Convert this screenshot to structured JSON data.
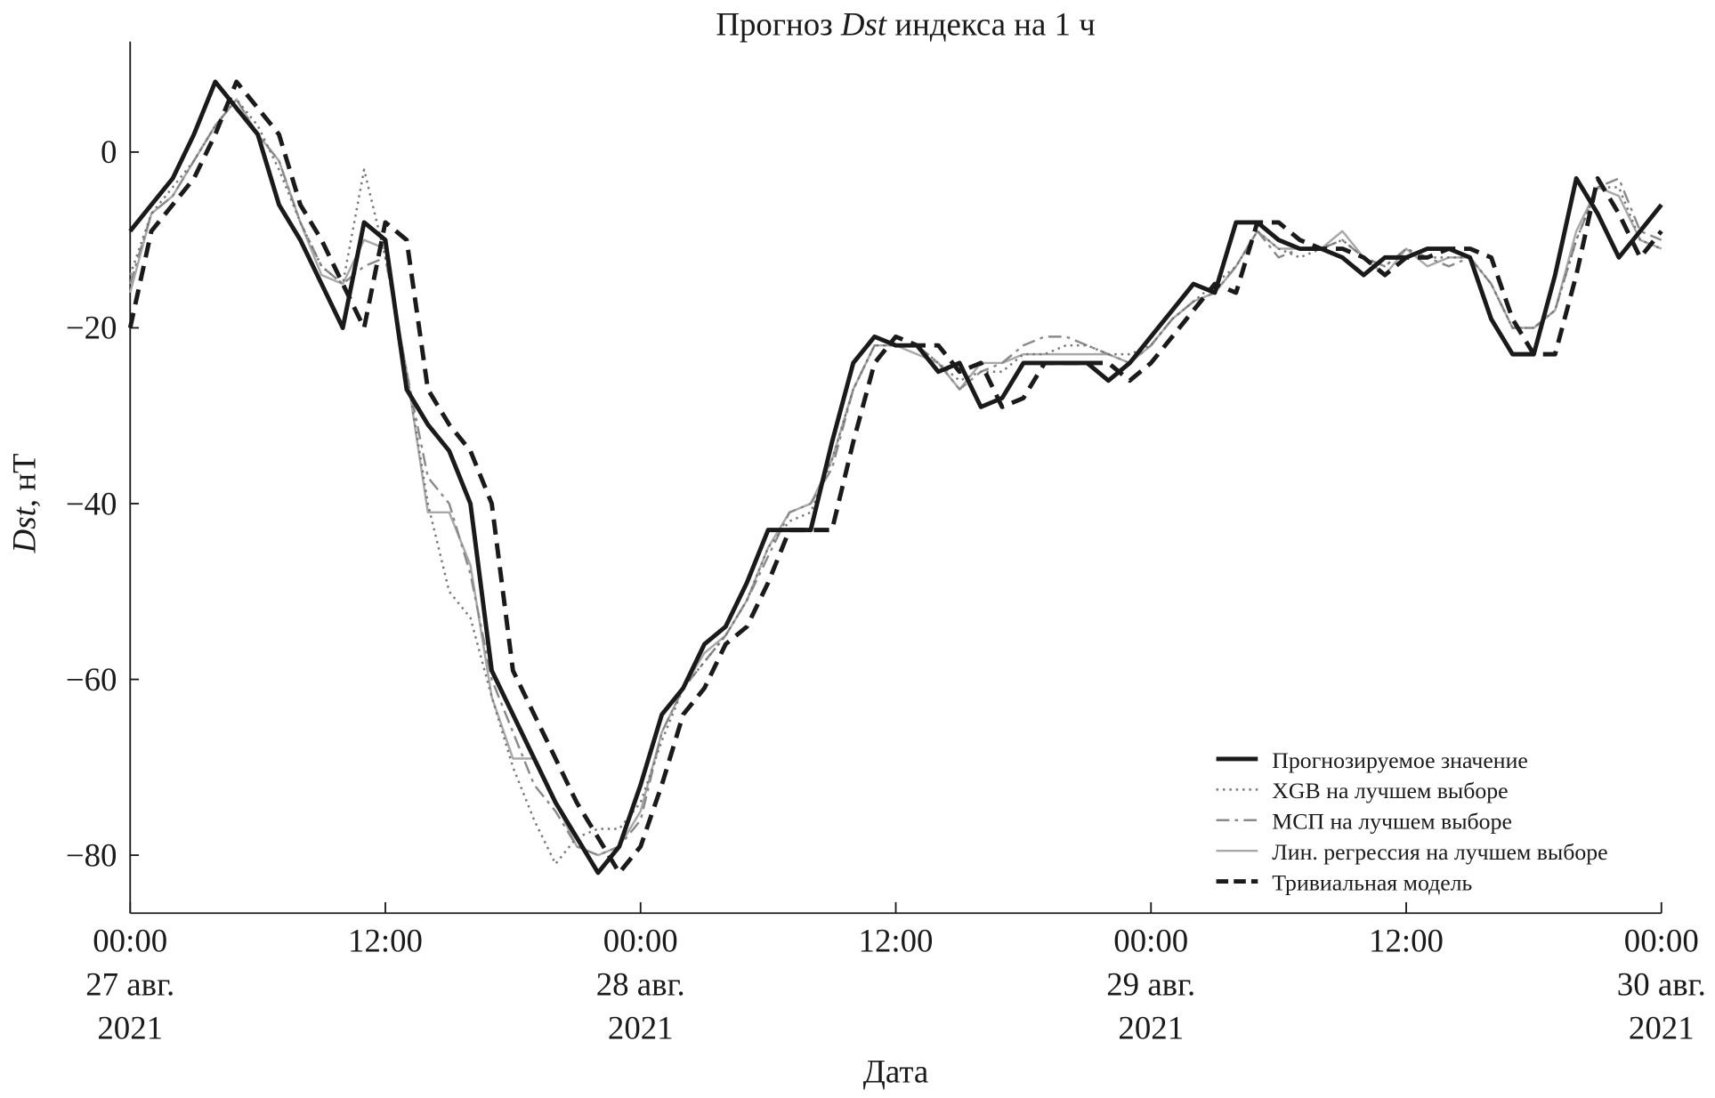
{
  "chart_data": {
    "type": "line",
    "title": {
      "prefix": "Прогноз ",
      "italic": "Dst",
      "suffix": " индекса на 1 ч"
    },
    "xlabel": "Дата",
    "ylabel": {
      "italic": "Dst",
      "suffix": ", нТ"
    },
    "ylim": [
      -87,
      12.5
    ],
    "xlim": [
      "2021-08-27T00:00",
      "2021-08-30T00:00"
    ],
    "grid": false,
    "legend_position": "bottom-right",
    "yticks": [
      0,
      -20,
      -40,
      -60,
      -80
    ],
    "ytick_labels": [
      "0",
      "−20",
      "−40",
      "−60",
      "−80"
    ],
    "xticks": [
      {
        "hour": 0,
        "lines": [
          "00:00",
          "27 авг.",
          "2021"
        ]
      },
      {
        "hour": 12,
        "lines": [
          "12:00"
        ]
      },
      {
        "hour": 24,
        "lines": [
          "00:00",
          "28 авг.",
          "2021"
        ]
      },
      {
        "hour": 36,
        "lines": [
          "12:00"
        ]
      },
      {
        "hour": 48,
        "lines": [
          "00:00",
          "29 авг.",
          "2021"
        ]
      },
      {
        "hour": 60,
        "lines": [
          "12:00"
        ]
      },
      {
        "hour": 72,
        "lines": [
          "00:00",
          "30 авг.",
          "2021"
        ]
      }
    ],
    "x_start": "2021-08-27T00:00",
    "x_step": "1 ч",
    "series": [
      {
        "name": "Прогнозируемое значение",
        "style": "solid-bold",
        "color": "#1a1a1a",
        "values": [
          -9,
          -6,
          -3,
          2,
          8,
          5,
          2,
          -6,
          -10,
          -15,
          -20,
          -8,
          -10,
          -27,
          -31,
          -34,
          -40,
          -59,
          -64,
          -69,
          -74,
          -78,
          -82,
          -79,
          -72,
          -64,
          -61,
          -56,
          -54,
          -49,
          -43,
          -43,
          -43,
          -33,
          -24,
          -21,
          -22,
          -22,
          -25,
          -24,
          -29,
          -28,
          -24,
          -24,
          -24,
          -24,
          -26,
          -24,
          -21,
          -18,
          -15,
          -16,
          -8,
          -8,
          -10,
          -11,
          -11,
          -12,
          -14,
          -12,
          -12,
          -11,
          -11,
          -12,
          -19,
          -23,
          -23,
          -14,
          -3,
          -7,
          -12,
          -9,
          -6
        ]
      },
      {
        "name": "XGB на лучшем выборе",
        "style": "dotted",
        "color": "#777777",
        "values": [
          -14,
          -7,
          -4,
          -1,
          3,
          6,
          3,
          -2,
          -8,
          -13,
          -15,
          -2,
          -12,
          -25,
          -40,
          -50,
          -53,
          -62,
          -70,
          -76,
          -81,
          -78,
          -77,
          -77,
          -74,
          -67,
          -61,
          -58,
          -55,
          -51,
          -45,
          -42,
          -41,
          -35,
          -27,
          -22,
          -22,
          -22,
          -24,
          -26,
          -25,
          -25,
          -23,
          -23,
          -22,
          -22,
          -23,
          -23,
          -22,
          -19,
          -17,
          -15,
          -13,
          -9,
          -11,
          -12,
          -11,
          -10,
          -12,
          -13,
          -11,
          -12,
          -12,
          -12,
          -15,
          -20,
          -20,
          -18,
          -10,
          -4,
          -4,
          -10,
          -11
        ]
      },
      {
        "name": "МСП на лучшем выборе",
        "style": "dash-dot",
        "color": "#8a8a8a",
        "values": [
          -15,
          -7,
          -5,
          -1,
          3,
          6,
          2,
          -1,
          -8,
          -13,
          -15,
          -13,
          -12,
          -25,
          -37,
          -40,
          -48,
          -60,
          -66,
          -72,
          -75,
          -79,
          -80,
          -79,
          -76,
          -66,
          -61,
          -58,
          -55,
          -51,
          -46,
          -41,
          -40,
          -36,
          -27,
          -22,
          -22,
          -22,
          -24,
          -27,
          -25,
          -24,
          -22,
          -21,
          -21,
          -22,
          -23,
          -24,
          -22,
          -19,
          -17,
          -16,
          -13,
          -9,
          -12,
          -11,
          -11,
          -10,
          -12,
          -13,
          -11,
          -12,
          -13,
          -12,
          -15,
          -20,
          -20,
          -18,
          -10,
          -4,
          -3,
          -9,
          -10
        ]
      },
      {
        "name": "Лин. регрессия на лучшем выборе",
        "style": "solid-thin",
        "color": "#a8a8a8",
        "values": [
          -16,
          -7,
          -5,
          -1,
          3,
          6,
          2,
          -1,
          -8,
          -14,
          -15,
          -10,
          -11,
          -25,
          -41,
          -41,
          -47,
          -62,
          -69,
          -69,
          -74,
          -79,
          -80,
          -79,
          -75,
          -66,
          -61,
          -57,
          -55,
          -51,
          -45,
          -41,
          -40,
          -35,
          -27,
          -22,
          -22,
          -23,
          -24,
          -27,
          -24,
          -24,
          -23,
          -23,
          -23,
          -23,
          -23,
          -24,
          -22,
          -19,
          -17,
          -16,
          -13,
          -9,
          -11,
          -11,
          -11,
          -9,
          -12,
          -14,
          -11,
          -13,
          -12,
          -12,
          -15,
          -20,
          -20,
          -18,
          -9,
          -4,
          -5,
          -10,
          -11
        ]
      },
      {
        "name": "Тривиальная модель",
        "style": "dashed-bold",
        "color": "#1a1a1a",
        "values": [
          -20,
          -9,
          -6,
          -3,
          2,
          8,
          5,
          2,
          -6,
          -10,
          -15,
          -20,
          -8,
          -10,
          -27,
          -31,
          -34,
          -40,
          -59,
          -64,
          -69,
          -74,
          -78,
          -82,
          -79,
          -72,
          -64,
          -61,
          -56,
          -54,
          -49,
          -43,
          -43,
          -43,
          -33,
          -24,
          -21,
          -22,
          -22,
          -25,
          -24,
          -29,
          -28,
          -24,
          -24,
          -24,
          -24,
          -26,
          -24,
          -21,
          -18,
          -15,
          -16,
          -8,
          -8,
          -10,
          -11,
          -11,
          -12,
          -14,
          -12,
          -12,
          -11,
          -11,
          -12,
          -19,
          -23,
          -23,
          -14,
          -3,
          -7,
          -12,
          -9
        ]
      }
    ]
  }
}
